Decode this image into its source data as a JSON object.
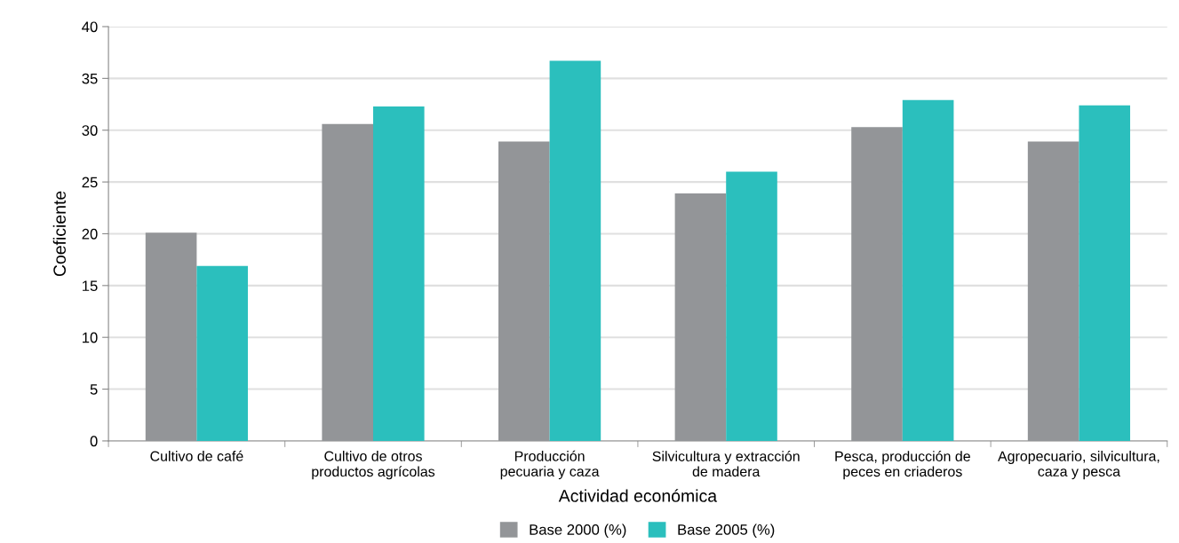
{
  "chart_data": {
    "type": "bar",
    "xlabel": "Actividad económica",
    "ylabel": "Coeficiente",
    "categories": [
      "Cultivo de café",
      "Cultivo de otros\nproductos agrícolas",
      "Producción\npecuaria y caza",
      "Silvicultura y extracción\nde madera",
      "Pesca, producción de\npeces en criaderos",
      "Agropecuario, silvicultura,\ncaza y pesca"
    ],
    "series": [
      {
        "name": "Base 2000 (%)",
        "color": "#939598",
        "values": [
          20.1,
          30.6,
          28.9,
          23.9,
          30.3,
          28.9
        ]
      },
      {
        "name": "Base 2005 (%)",
        "color": "#2bbfbd",
        "values": [
          16.9,
          32.3,
          36.7,
          26.0,
          32.9,
          32.4
        ]
      }
    ],
    "ylim": [
      0,
      40
    ],
    "yticks": [
      0,
      5,
      10,
      15,
      20,
      25,
      30,
      35,
      40
    ],
    "grid": "y",
    "legend": "bottom"
  }
}
